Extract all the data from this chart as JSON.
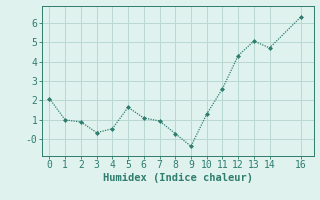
{
  "x": [
    0,
    1,
    2,
    3,
    4,
    5,
    6,
    7,
    8,
    9,
    10,
    11,
    12,
    13,
    14,
    16
  ],
  "y": [
    2.1,
    1.0,
    0.9,
    0.35,
    0.55,
    1.65,
    1.1,
    0.95,
    0.3,
    -0.35,
    1.3,
    2.6,
    4.3,
    5.05,
    4.7,
    6.3
  ],
  "line_color": "#2e7d6e",
  "marker": "D",
  "marker_size": 2.0,
  "bg_color": "#dff2ee",
  "grid_color": "#b8d8d2",
  "xlabel": "Humidex (Indice chaleur)",
  "xlim": [
    -0.5,
    16.8
  ],
  "ylim": [
    -0.85,
    6.85
  ],
  "yticks": [
    0,
    1,
    2,
    3,
    4,
    5,
    6
  ],
  "ytick_labels": [
    "-0",
    "1",
    "2",
    "3",
    "4",
    "5",
    "6"
  ],
  "xticks": [
    0,
    1,
    2,
    3,
    4,
    5,
    6,
    7,
    8,
    9,
    10,
    11,
    12,
    13,
    14,
    16
  ],
  "label_fontsize": 7.5,
  "tick_fontsize": 7.0
}
